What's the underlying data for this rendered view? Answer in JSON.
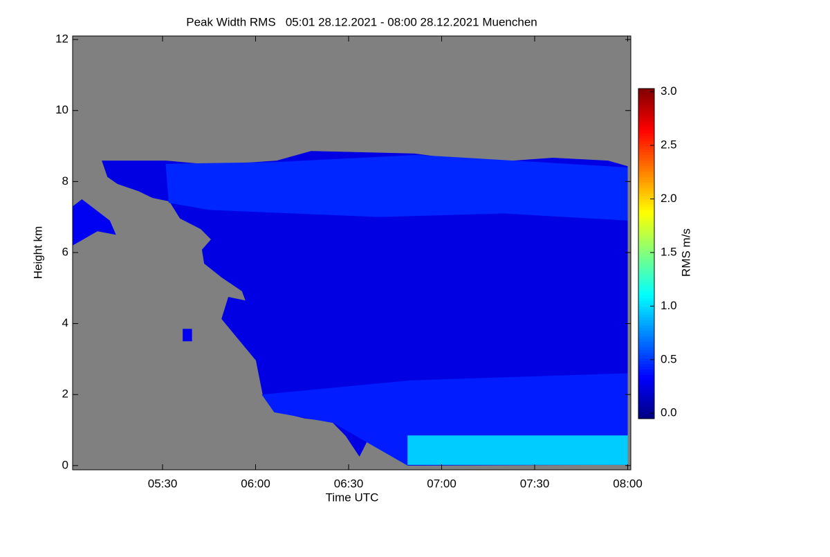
{
  "chart_data": {
    "type": "heatmap-regions",
    "title": "Peak Width RMS   05:01 28.12.2021 - 08:00 28.12.2021 Muenchen",
    "x_label": "Time UTC",
    "y_label": "Height km",
    "colorbar_label": "RMS m/s",
    "background": "#808080",
    "xlim": [
      301,
      481
    ],
    "ylim": [
      -0.12,
      12.1
    ],
    "xticks": [
      {
        "value": 330,
        "label": "05:30"
      },
      {
        "value": 360,
        "label": "06:00"
      },
      {
        "value": 390,
        "label": "06:30"
      },
      {
        "value": 420,
        "label": "07:00"
      },
      {
        "value": 450,
        "label": "07:30"
      },
      {
        "value": 480,
        "label": "08:00"
      }
    ],
    "yticks": [
      0,
      2,
      4,
      6,
      8,
      10,
      12
    ],
    "clim": [
      -0.05,
      3.03
    ],
    "cticks": [
      {
        "value": 0,
        "label": "0.0"
      },
      0.5,
      {
        "value": 1,
        "label": "1.0"
      },
      1.5,
      {
        "value": 2,
        "label": "2.0"
      },
      2.5,
      {
        "value": 3,
        "label": "3.0"
      }
    ],
    "regions": [
      {
        "value": 0.25,
        "x": [
          310.4,
          331.1,
          346.7,
          366.8,
          377.9,
          411.3,
          433.6,
          455.9,
          473.7,
          480,
          480,
          409.1,
          406.9,
          402.4,
          398.0,
          393.5,
          389.0,
          384.6,
          375.7,
          366.8,
          362.3,
          360.1,
          354.5,
          349.0,
          351.2,
          356.7,
          355.6,
          349.0,
          343.4,
          342.7,
          345.6,
          342.3,
          335.6,
          332.2,
          326.7,
          322.2,
          315.5,
          312.2
        ],
        "y": [
          8.59,
          8.59,
          8.47,
          8.59,
          8.86,
          8.79,
          8.53,
          8.67,
          8.59,
          8.43,
          0.02,
          0.0,
          0.25,
          0.64,
          1.03,
          0.25,
          0.84,
          1.23,
          1.33,
          1.52,
          1.99,
          2.96,
          3.55,
          4.13,
          4.75,
          4.65,
          4.91,
          5.3,
          5.69,
          6.08,
          6.37,
          6.66,
          6.96,
          7.44,
          7.54,
          7.73,
          7.93,
          8.13
        ]
      },
      {
        "value": 0.45,
        "x": [
          331,
          367,
          412,
          480,
          480,
          440,
          400,
          345,
          332
        ],
        "y": [
          8.5,
          8.55,
          8.75,
          8.4,
          6.9,
          7.1,
          7.0,
          7.2,
          7.4
        ]
      },
      {
        "value": 0.42,
        "x": [
          362,
          410,
          480,
          480,
          409,
          409,
          385,
          366
        ],
        "y": [
          2.0,
          2.4,
          2.6,
          0.85,
          0.85,
          0.0,
          1.2,
          1.5
        ]
      },
      {
        "value": 0.95,
        "x": [
          409,
          480,
          480,
          409
        ],
        "y": [
          0.85,
          0.85,
          0.02,
          0.02
        ]
      },
      {
        "value": 0.3,
        "x": [
          301,
          304,
          313,
          315,
          309,
          301
        ],
        "y": [
          7.3,
          7.5,
          6.9,
          6.5,
          6.6,
          6.2
        ]
      },
      {
        "value": 0.3,
        "x": [
          336.5,
          339.5,
          339.5,
          336.5
        ],
        "y": [
          3.85,
          3.85,
          3.5,
          3.5
        ]
      }
    ]
  }
}
